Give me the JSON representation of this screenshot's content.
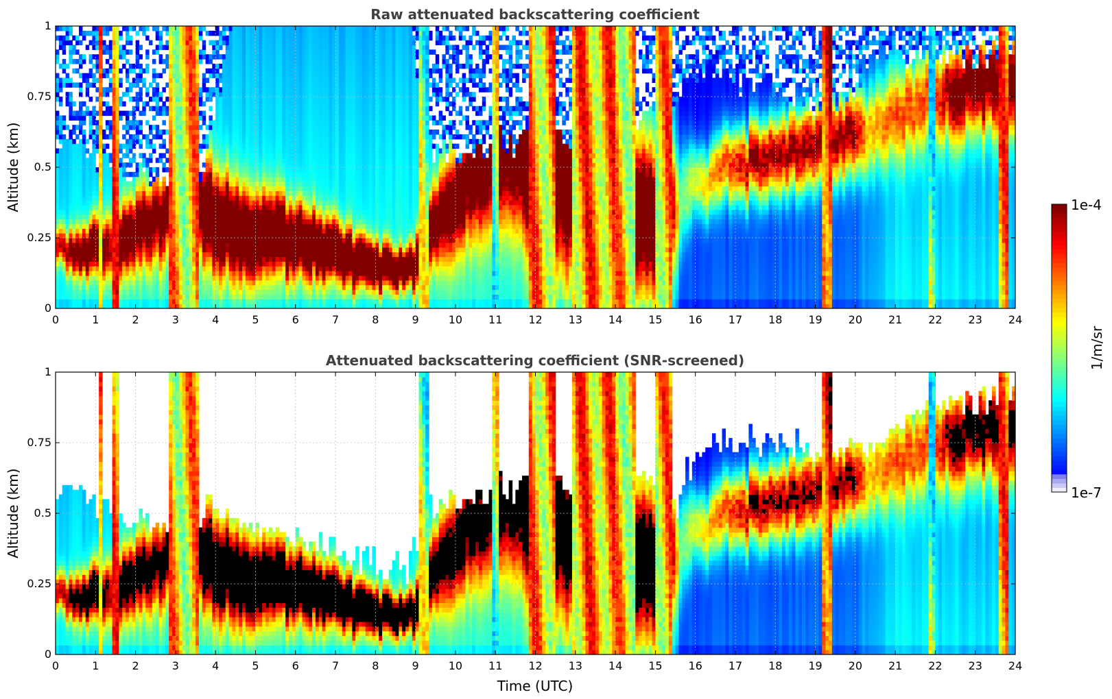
{
  "colorbar": {
    "label": "1/m/sr",
    "max_label": "1e-4",
    "min_label": "1e-7",
    "scale": "log",
    "range": [
      1e-07,
      0.0001
    ],
    "colormap": "jet"
  },
  "chart_data": [
    {
      "type": "heatmap",
      "title": "Raw attenuated backscattering coefficient",
      "xlabel": "",
      "ylabel": "Altitude (km)",
      "xlim": [
        0,
        24
      ],
      "ylim": [
        0,
        1
      ],
      "xticks": [
        "0",
        "1",
        "2",
        "3",
        "4",
        "5",
        "6",
        "7",
        "8",
        "9",
        "10",
        "11",
        "12",
        "13",
        "14",
        "15",
        "16",
        "17",
        "18",
        "19",
        "20",
        "21",
        "22",
        "23",
        "24"
      ],
      "yticks": [
        "0",
        "0.25",
        "0.5",
        "0.75",
        "1"
      ],
      "grid": true,
      "screened": false
    },
    {
      "type": "heatmap",
      "title": "Attenuated backscattering coefficient (SNR-screened)",
      "xlabel": "Time (UTC)",
      "ylabel": "Altitude (km)",
      "xlim": [
        0,
        24
      ],
      "ylim": [
        0,
        1
      ],
      "xticks": [
        "0",
        "1",
        "2",
        "3",
        "4",
        "5",
        "6",
        "7",
        "8",
        "9",
        "10",
        "11",
        "12",
        "13",
        "14",
        "15",
        "16",
        "17",
        "18",
        "19",
        "20",
        "21",
        "22",
        "23",
        "24"
      ],
      "yticks": [
        "0",
        "0.25",
        "0.5",
        "0.75",
        "1"
      ],
      "grid": true,
      "screened": true
    }
  ]
}
